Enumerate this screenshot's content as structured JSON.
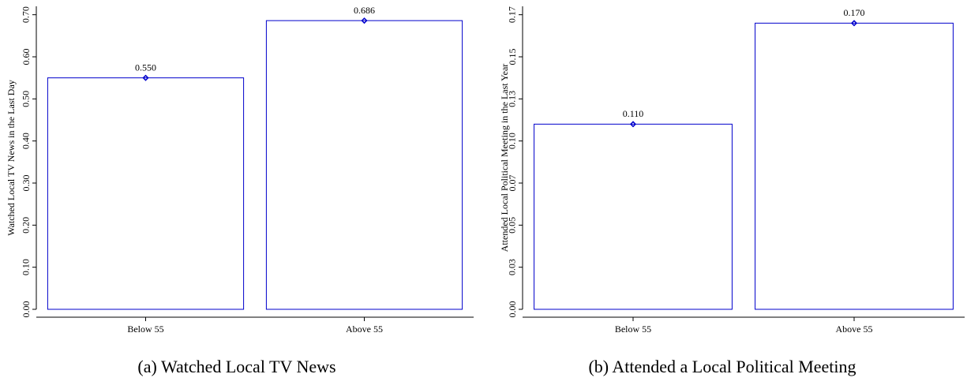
{
  "chart_data": [
    {
      "type": "bar",
      "caption": "(a) Watched Local TV News",
      "ylabel": "Watched Local TV News in the Last Day",
      "categories": [
        "Below 55",
        "Above 55"
      ],
      "values": [
        0.55,
        0.686
      ],
      "value_labels": [
        "0.550",
        "0.686"
      ],
      "color": "#0000cc",
      "ylim": [
        0,
        0.72
      ],
      "yticks": [
        {
          "value": 0,
          "label": "0.00"
        },
        {
          "value": 0.1,
          "label": "0.10"
        },
        {
          "value": 0.2,
          "label": "0.20"
        },
        {
          "value": 0.3,
          "label": "0.30"
        },
        {
          "value": 0.4,
          "label": "0.40"
        },
        {
          "value": 0.5,
          "label": "0.50"
        },
        {
          "value": 0.6,
          "label": "0.60"
        },
        {
          "value": 0.7,
          "label": "0.70"
        }
      ]
    },
    {
      "type": "bar",
      "caption": "(b) Attended a Local Political Meeting",
      "ylabel": "Attended Local Political Meeting in the Last Year",
      "categories": [
        "Below 55",
        "Above 55"
      ],
      "values": [
        0.11,
        0.17
      ],
      "value_labels": [
        "0.110",
        "0.170"
      ],
      "color": "#0000cc",
      "ylim": [
        0,
        0.18
      ],
      "yticks": [
        {
          "value": 0,
          "label": "0.00"
        },
        {
          "value": 0.025,
          "label": "0.03"
        },
        {
          "value": 0.05,
          "label": "0.05"
        },
        {
          "value": 0.075,
          "label": "0.07"
        },
        {
          "value": 0.1,
          "label": "0.10"
        },
        {
          "value": 0.125,
          "label": "0.13"
        },
        {
          "value": 0.15,
          "label": "0.15"
        },
        {
          "value": 0.175,
          "label": "0.17"
        }
      ]
    }
  ]
}
